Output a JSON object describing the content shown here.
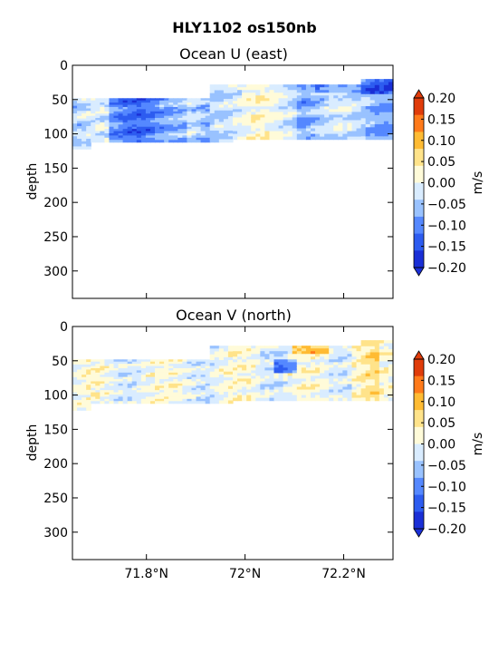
{
  "figure": {
    "title": "HLY1102 os150nb"
  },
  "chart_data": [
    {
      "type": "heatmap",
      "title": "Ocean U (east)",
      "ylabel": "depth",
      "ylim": [
        0,
        340
      ],
      "y_inverted": true,
      "yticks": [
        0,
        50,
        100,
        150,
        200,
        250,
        300
      ],
      "xlim": [
        71.65,
        72.3
      ],
      "xticks": [
        71.8,
        72.0,
        72.2
      ],
      "xtick_labels": [],
      "colorbar": {
        "label": "m/s",
        "ticks": [
          "0.20",
          "0.15",
          "0.10",
          "0.05",
          "0.00",
          "−0.05",
          "−0.10",
          "−0.15",
          "−0.20"
        ]
      },
      "dominant_range": [
        -0.2,
        0.05
      ],
      "data_depth_range": [
        20,
        120
      ]
    },
    {
      "type": "heatmap",
      "title": "Ocean V (north)",
      "ylabel": "depth",
      "ylim": [
        0,
        340
      ],
      "y_inverted": true,
      "yticks": [
        0,
        50,
        100,
        150,
        200,
        250,
        300
      ],
      "xlim": [
        71.65,
        72.3
      ],
      "xticks": [
        71.8,
        72.0,
        72.2
      ],
      "xtick_labels": [
        "71.8°N",
        "72°N",
        "72.2°N"
      ],
      "colorbar": {
        "label": "m/s",
        "ticks": [
          "0.20",
          "0.15",
          "0.10",
          "0.05",
          "0.00",
          "−0.05",
          "−0.10",
          "−0.15",
          "−0.20"
        ]
      },
      "dominant_range": [
        -0.1,
        0.1
      ],
      "data_depth_range": [
        20,
        120
      ]
    }
  ],
  "colors": {
    "levels": [
      "#1a2fd6",
      "#2d5cf0",
      "#5588ff",
      "#99c2ff",
      "#d9ecff",
      "#fffbd9",
      "#ffe38a",
      "#ffbb33",
      "#ff7a1a",
      "#e03c0a"
    ]
  }
}
